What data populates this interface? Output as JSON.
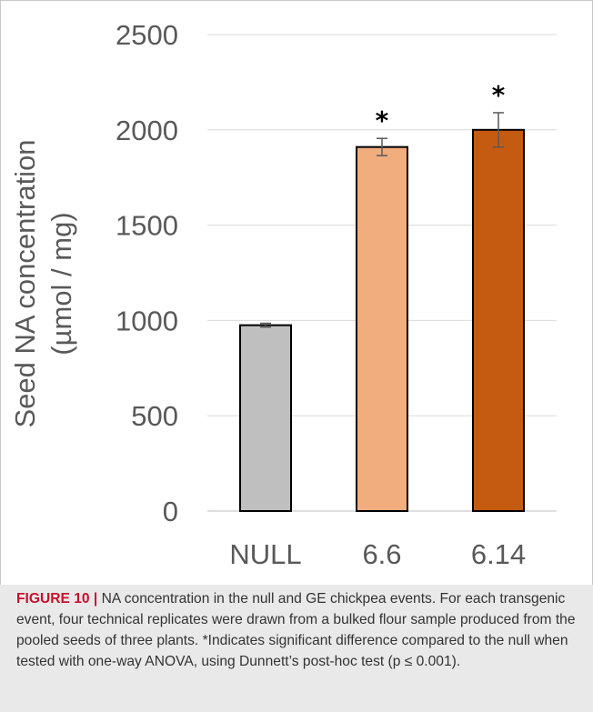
{
  "chart_data": {
    "type": "bar",
    "categories": [
      "NULL",
      "6.6",
      "6.14"
    ],
    "values": [
      975,
      1910,
      2000
    ],
    "errors": [
      10,
      45,
      90
    ],
    "significance": [
      "",
      "*",
      "*"
    ],
    "colors": [
      "#bfbfbf",
      "#f1ad7e",
      "#c55a11"
    ],
    "ylabel_line1": "Seed NA concentration",
    "ylabel_line2": "(µmol / mg)",
    "ylim": [
      0,
      2500
    ],
    "yticks": [
      0,
      500,
      1000,
      1500,
      2000,
      2500
    ],
    "grid": true
  },
  "caption": {
    "label": "FIGURE 10 |",
    "text": " NA concentration in the null and GE chickpea events. For each transgenic event, four technical replicates were drawn from a bulked flour sample produced from the pooled seeds of three plants. *Indicates significant difference compared to the null when tested with one-way ANOVA, using Dunnett’s post-hoc test (p ≤ 0.001)."
  }
}
